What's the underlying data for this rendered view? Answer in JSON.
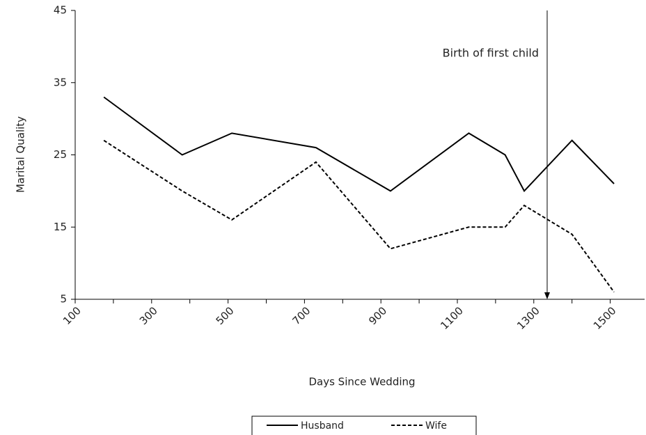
{
  "chart_data": {
    "type": "line",
    "xlabel": "Days Since Wedding",
    "ylabel": "Marital Quality",
    "x": [
      175,
      380,
      510,
      730,
      925,
      1130,
      1225,
      1275,
      1400,
      1510
    ],
    "series": [
      {
        "name": "Husband",
        "color": "#000000",
        "dash": "solid",
        "values": [
          33,
          25,
          28,
          26,
          20,
          28,
          25,
          20,
          27,
          21
        ]
      },
      {
        "name": "Wife",
        "color": "#000000",
        "dash": "dashed",
        "values": [
          27,
          20,
          16,
          24,
          12,
          15,
          15,
          18,
          14,
          6
        ]
      }
    ],
    "xlim": [
      100,
      1590
    ],
    "xticks": [
      100,
      300,
      500,
      700,
      900,
      1100,
      1300,
      1500
    ],
    "xminorticks": [
      200,
      400,
      600,
      800,
      1000,
      1200,
      1400
    ],
    "ylim": [
      5,
      45
    ],
    "yticks": [
      5,
      15,
      25,
      35,
      45
    ],
    "annotations": [
      {
        "text": "Birth of first child",
        "x": 1335
      }
    ],
    "legend": "bottom"
  }
}
